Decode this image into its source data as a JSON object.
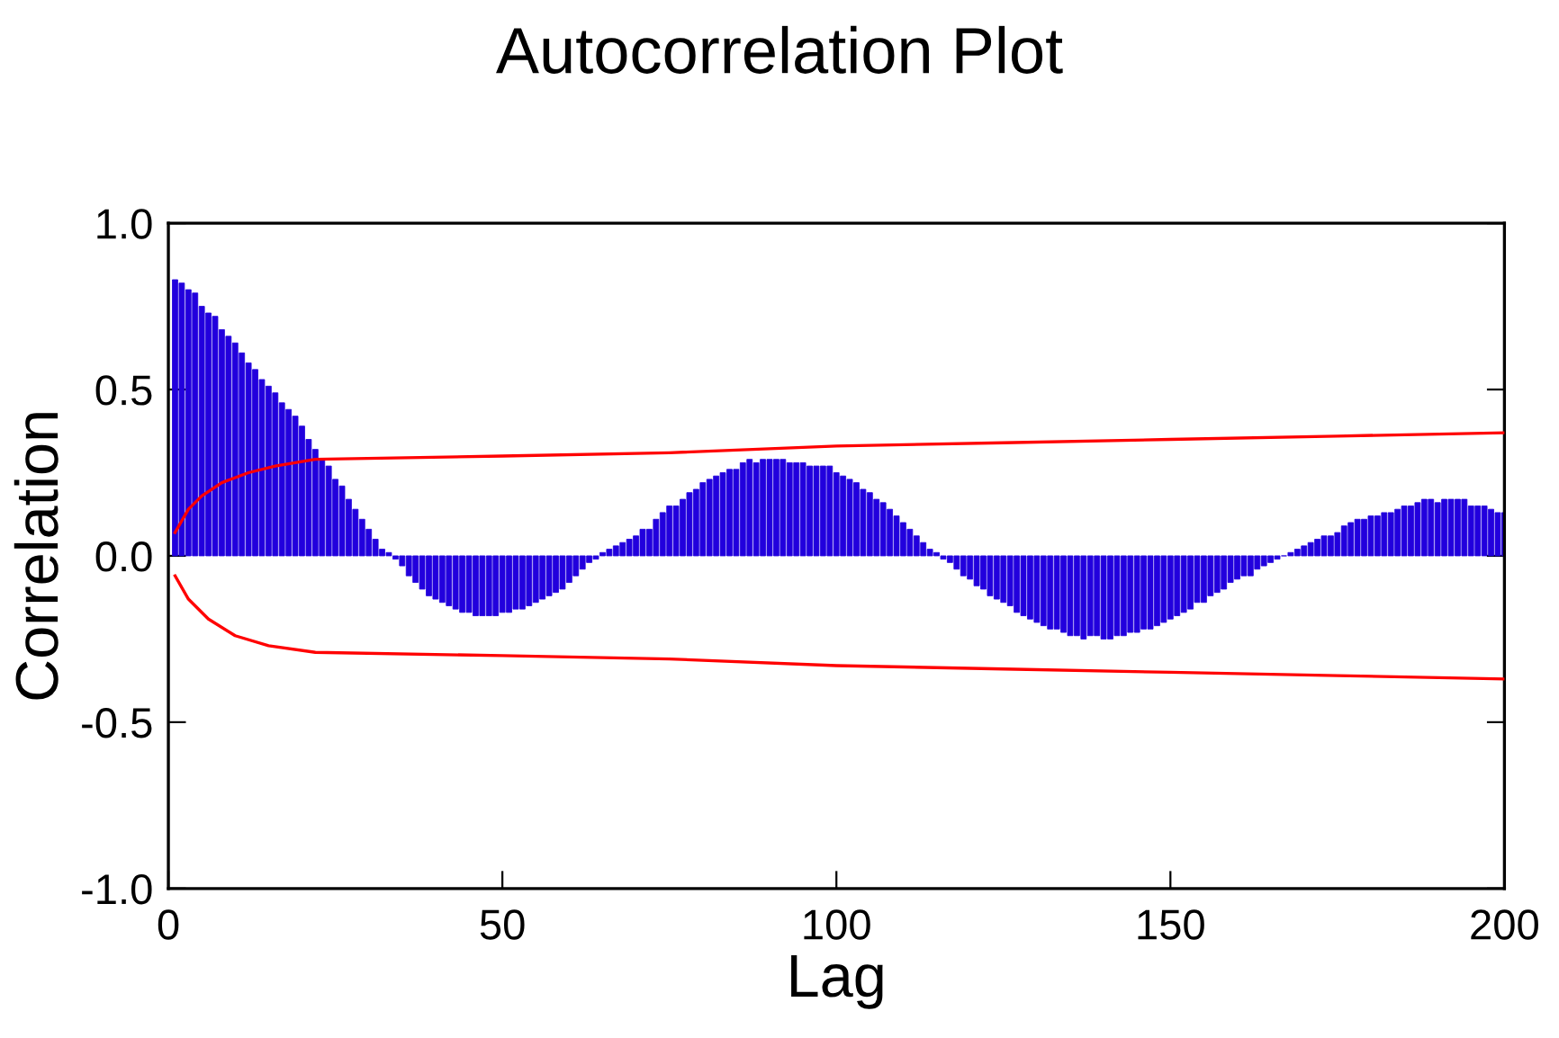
{
  "chart_data": {
    "type": "bar",
    "title": "Autocorrelation Plot",
    "xlabel": "Lag",
    "ylabel": "Correlation",
    "xlim": [
      0,
      200
    ],
    "xticks": [
      0,
      50,
      100,
      150,
      200
    ],
    "ylim": [
      -1.0,
      1.0
    ],
    "yticks": [
      {
        "value": -1.0,
        "label": "-1.0"
      },
      {
        "value": -0.5,
        "label": "-0.5"
      },
      {
        "value": 0.0,
        "label": "0.0"
      },
      {
        "value": 0.5,
        "label": "0.5"
      },
      {
        "value": 1.0,
        "label": "1.0"
      }
    ],
    "grid": false,
    "legend": false,
    "series": [
      {
        "color": "#2200dd",
        "x": [
          1,
          2,
          3,
          4,
          5,
          6,
          7,
          8,
          9,
          10,
          11,
          12,
          13,
          14,
          15,
          16,
          17,
          18,
          19,
          20,
          21,
          22,
          23,
          24,
          25,
          26,
          27,
          28,
          29,
          30,
          31,
          32,
          33,
          34,
          35,
          36,
          37,
          38,
          39,
          40,
          41,
          42,
          43,
          44,
          45,
          46,
          47,
          48,
          49,
          50,
          51,
          52,
          53,
          54,
          55,
          56,
          57,
          58,
          59,
          60,
          61,
          62,
          63,
          64,
          65,
          66,
          67,
          68,
          69,
          70,
          71,
          72,
          73,
          74,
          75,
          76,
          77,
          78,
          79,
          80,
          81,
          82,
          83,
          84,
          85,
          86,
          87,
          88,
          89,
          90,
          91,
          92,
          93,
          94,
          95,
          96,
          97,
          98,
          99,
          100,
          101,
          102,
          103,
          104,
          105,
          106,
          107,
          108,
          109,
          110,
          111,
          112,
          113,
          114,
          115,
          116,
          117,
          118,
          119,
          120,
          121,
          122,
          123,
          124,
          125,
          126,
          127,
          128,
          129,
          130,
          131,
          132,
          133,
          134,
          135,
          136,
          137,
          138,
          139,
          140,
          141,
          142,
          143,
          144,
          145,
          146,
          147,
          148,
          149,
          150,
          151,
          152,
          153,
          154,
          155,
          156,
          157,
          158,
          159,
          160,
          161,
          162,
          163,
          164,
          165,
          166,
          167,
          168,
          169,
          170,
          171,
          172,
          173,
          174,
          175,
          176,
          177,
          178,
          179,
          180,
          181,
          182,
          183,
          184,
          185,
          186,
          187,
          188,
          189,
          190,
          191,
          192,
          193,
          194,
          195,
          196,
          197,
          198,
          199,
          200
        ],
        "values": [
          0.83,
          0.82,
          0.8,
          0.79,
          0.75,
          0.73,
          0.72,
          0.68,
          0.66,
          0.64,
          0.61,
          0.58,
          0.56,
          0.53,
          0.51,
          0.49,
          0.46,
          0.44,
          0.42,
          0.39,
          0.35,
          0.32,
          0.29,
          0.27,
          0.23,
          0.21,
          0.17,
          0.14,
          0.11,
          0.08,
          0.05,
          0.02,
          0.01,
          -0.01,
          -0.03,
          -0.06,
          -0.08,
          -0.1,
          -0.12,
          -0.13,
          -0.14,
          -0.15,
          -0.16,
          -0.17,
          -0.17,
          -0.18,
          -0.18,
          -0.18,
          -0.18,
          -0.17,
          -0.17,
          -0.16,
          -0.16,
          -0.15,
          -0.14,
          -0.13,
          -0.12,
          -0.11,
          -0.1,
          -0.08,
          -0.06,
          -0.04,
          -0.02,
          -0.01,
          0.01,
          0.02,
          0.03,
          0.04,
          0.05,
          0.06,
          0.08,
          0.08,
          0.11,
          0.13,
          0.15,
          0.15,
          0.17,
          0.19,
          0.2,
          0.22,
          0.23,
          0.24,
          0.25,
          0.26,
          0.26,
          0.28,
          0.29,
          0.28,
          0.29,
          0.29,
          0.29,
          0.29,
          0.28,
          0.28,
          0.28,
          0.27,
          0.27,
          0.27,
          0.27,
          0.25,
          0.24,
          0.23,
          0.22,
          0.2,
          0.19,
          0.17,
          0.16,
          0.14,
          0.12,
          0.1,
          0.08,
          0.06,
          0.04,
          0.02,
          0.01,
          -0.01,
          -0.02,
          -0.04,
          -0.06,
          -0.07,
          -0.09,
          -0.1,
          -0.12,
          -0.13,
          -0.14,
          -0.15,
          -0.17,
          -0.18,
          -0.19,
          -0.2,
          -0.21,
          -0.22,
          -0.22,
          -0.23,
          -0.24,
          -0.24,
          -0.25,
          -0.24,
          -0.24,
          -0.25,
          -0.25,
          -0.24,
          -0.24,
          -0.23,
          -0.23,
          -0.22,
          -0.22,
          -0.21,
          -0.2,
          -0.19,
          -0.18,
          -0.17,
          -0.16,
          -0.14,
          -0.14,
          -0.12,
          -0.11,
          -0.1,
          -0.08,
          -0.07,
          -0.06,
          -0.06,
          -0.04,
          -0.03,
          -0.02,
          -0.01,
          0.0,
          0.01,
          0.02,
          0.03,
          0.04,
          0.05,
          0.06,
          0.06,
          0.07,
          0.09,
          0.1,
          0.11,
          0.11,
          0.12,
          0.12,
          0.13,
          0.13,
          0.14,
          0.15,
          0.15,
          0.16,
          0.17,
          0.17,
          0.16,
          0.17,
          0.17,
          0.17,
          0.17,
          0.15,
          0.15,
          0.15,
          0.14,
          0.13,
          0.13
        ]
      },
      {
        "type": "line",
        "color": "#ff0000",
        "x": [
          1,
          3,
          5,
          8,
          12,
          16,
          22,
          50,
          75,
          100,
          125,
          150,
          175,
          200
        ],
        "values": [
          0.07,
          0.14,
          0.18,
          0.22,
          0.25,
          0.27,
          0.29,
          0.3,
          0.31,
          0.33,
          0.34,
          0.35,
          0.36,
          0.37
        ]
      },
      {
        "type": "line",
        "color": "#ff0000",
        "x": [
          1,
          3,
          6,
          10,
          15,
          22,
          50,
          75,
          100,
          125,
          150,
          175,
          200
        ],
        "values": [
          -0.06,
          -0.13,
          -0.19,
          -0.24,
          -0.27,
          -0.29,
          -0.3,
          -0.31,
          -0.33,
          -0.34,
          -0.35,
          -0.36,
          -0.37
        ]
      }
    ]
  }
}
